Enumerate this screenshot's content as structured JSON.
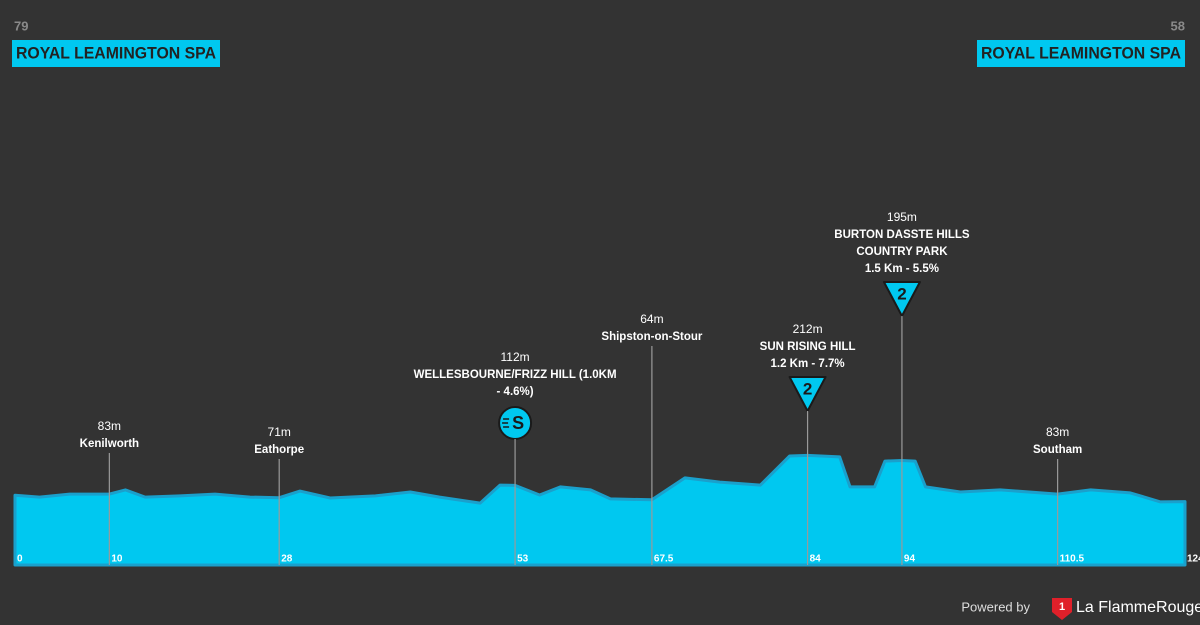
{
  "header": {
    "start_elevation": 79,
    "start_name": "ROYAL LEAMINGTON SPA",
    "finish_elevation": 58,
    "finish_name": "ROYAL LEAMINGTON SPA"
  },
  "chart_data": {
    "type": "area",
    "color": "#00c8f0",
    "line_color": "#1aa0cc",
    "x": [
      0,
      2.6,
      5.8,
      10,
      11.7,
      13.8,
      17.5,
      21.2,
      24.9,
      28,
      30.2,
      33.4,
      38.2,
      41.9,
      45,
      49.3,
      51.4,
      53,
      55.6,
      57.8,
      61,
      63.1,
      67.5,
      71,
      74.7,
      79,
      82.1,
      84,
      87.4,
      88.5,
      91.1,
      92.2,
      94,
      95.4,
      96.5,
      100.2,
      104.4,
      110.5,
      114,
      118.2,
      121.4,
      124
    ],
    "values": [
      79,
      73,
      83,
      83,
      97,
      73,
      77,
      83,
      73,
      71,
      93,
      70,
      77,
      90,
      73,
      53,
      113,
      112,
      80,
      107,
      97,
      67,
      64,
      137,
      123,
      113,
      210,
      212,
      207,
      107,
      107,
      193,
      195,
      193,
      107,
      90,
      97,
      83,
      97,
      87,
      57,
      58
    ],
    "xlim": [
      0,
      124
    ],
    "xticks": [
      0,
      10,
      28,
      53,
      67.5,
      84,
      94,
      110.5,
      124
    ],
    "markers": [
      {
        "km": 10,
        "elevation": "83m",
        "lines": [
          "Kenilworth"
        ]
      },
      {
        "km": 28,
        "elevation": "71m",
        "lines": [
          "Eathorpe"
        ]
      },
      {
        "km": 53,
        "elevation": "112m",
        "lines": [
          "WELLESBOURNE/FRIZZ HILL (1.0KM",
          "- 4.6%)"
        ],
        "icon": "sprint",
        "icon_label": "S"
      },
      {
        "km": 67.5,
        "elevation": "64m",
        "lines": [
          "Shipston-on-Stour"
        ]
      },
      {
        "km": 84,
        "elevation": "212m",
        "lines": [
          "SUN RISING HILL",
          "1.2 Km - 7.7%"
        ],
        "icon": "climb",
        "icon_label": "2"
      },
      {
        "km": 94,
        "elevation": "195m",
        "lines": [
          "BURTON DASSTE HILLS",
          "COUNTRY PARK",
          "1.5 Km - 5.5%"
        ],
        "icon": "climb",
        "icon_label": "2"
      },
      {
        "km": 110.5,
        "elevation": "83m",
        "lines": [
          "Southam"
        ]
      }
    ]
  },
  "footer": {
    "powered_by": "Powered by",
    "logo_number": "1",
    "brand": "La FlammeRouge"
  }
}
